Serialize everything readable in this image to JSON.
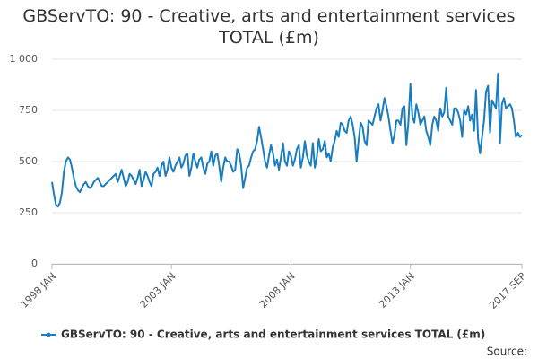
{
  "chart_data": {
    "type": "line",
    "title": "GBServTO: 90 - Creative, arts and entertainment services TOTAL (£m)",
    "source": "Source:",
    "categories": [
      "1998 JAN",
      null,
      null,
      null,
      null,
      null,
      null,
      null,
      null,
      null,
      null,
      null,
      null,
      null,
      null,
      null,
      null,
      null,
      null,
      null,
      null,
      null,
      null,
      null,
      null,
      null,
      null,
      null,
      null,
      null,
      null,
      null,
      null,
      null,
      null,
      null,
      null,
      null,
      null,
      null,
      null,
      null,
      null,
      null,
      null,
      null,
      null,
      null,
      null,
      null,
      null,
      null,
      null,
      null,
      null,
      null,
      null,
      null,
      null,
      null,
      "2003 JAN",
      null,
      null,
      null,
      null,
      null,
      null,
      null,
      null,
      null,
      null,
      null,
      null,
      null,
      null,
      null,
      null,
      null,
      null,
      null,
      null,
      null,
      null,
      null,
      null,
      null,
      null,
      null,
      null,
      null,
      null,
      null,
      null,
      null,
      null,
      null,
      null,
      null,
      null,
      null,
      null,
      null,
      null,
      null,
      null,
      null,
      null,
      null,
      null,
      null,
      null,
      null,
      null,
      null,
      null,
      null,
      null,
      null,
      null,
      null,
      "2008 JAN",
      null,
      null,
      null,
      null,
      null,
      null,
      null,
      null,
      null,
      null,
      null,
      null,
      null,
      null,
      null,
      null,
      null,
      null,
      null,
      null,
      null,
      null,
      null,
      null,
      null,
      null,
      null,
      null,
      null,
      null,
      null,
      null,
      null,
      null,
      null,
      null,
      null,
      null,
      null,
      null,
      null,
      null,
      null,
      null,
      null,
      null,
      null,
      null,
      null,
      null,
      null,
      null,
      null,
      null,
      null,
      null,
      null,
      null,
      null,
      "2013 JAN",
      null,
      null,
      null,
      null,
      null,
      null,
      null,
      null,
      null,
      null,
      null,
      null,
      null,
      null,
      null,
      null,
      null,
      null,
      null,
      null,
      null,
      null,
      null,
      null,
      null,
      null,
      null,
      null,
      null,
      null,
      null,
      null,
      null,
      null,
      null,
      null,
      null,
      null,
      null,
      null,
      null,
      null,
      null,
      null,
      null,
      null,
      null,
      null,
      null,
      null,
      null,
      null,
      null,
      null,
      null,
      "2017 SEP"
    ],
    "series": [
      {
        "name": "GBServTO: 90 - Creative, arts and entertainment services TOTAL (£m)",
        "color": "#1a7dbd",
        "values": [
          400,
          340,
          290,
          280,
          300,
          350,
          450,
          500,
          520,
          510,
          470,
          420,
          380,
          360,
          350,
          370,
          390,
          400,
          380,
          370,
          380,
          400,
          410,
          420,
          400,
          380,
          380,
          390,
          400,
          410,
          420,
          430,
          440,
          400,
          430,
          460,
          420,
          380,
          400,
          440,
          430,
          410,
          390,
          420,
          460,
          380,
          410,
          450,
          430,
          400,
          380,
          440,
          450,
          470,
          430,
          480,
          500,
          430,
          460,
          520,
          470,
          450,
          480,
          500,
          520,
          470,
          490,
          530,
          540,
          430,
          470,
          540,
          500,
          470,
          510,
          520,
          470,
          440,
          490,
          500,
          550,
          480,
          530,
          540,
          480,
          400,
          470,
          520,
          500,
          500,
          480,
          450,
          460,
          560,
          540,
          480,
          370,
          420,
          470,
          480,
          520,
          550,
          560,
          600,
          670,
          620,
          560,
          500,
          470,
          530,
          580,
          540,
          480,
          510,
          460,
          520,
          590,
          500,
          480,
          550,
          530,
          480,
          510,
          560,
          580,
          470,
          520,
          600,
          530,
          500,
          480,
          590,
          470,
          520,
          610,
          550,
          560,
          600,
          520,
          540,
          500,
          570,
          600,
          650,
          620,
          690,
          680,
          650,
          640,
          700,
          720,
          680,
          620,
          500,
          600,
          690,
          670,
          600,
          580,
          700,
          690,
          680,
          720,
          760,
          780,
          700,
          750,
          810,
          770,
          720,
          650,
          590,
          630,
          700,
          700,
          680,
          760,
          770,
          580,
          690,
          880,
          720,
          690,
          780,
          740,
          680,
          700,
          720,
          650,
          620,
          580,
          680,
          720,
          700,
          650,
          760,
          720,
          740,
          860,
          720,
          700,
          680,
          760,
          760,
          740,
          700,
          620,
          750,
          730,
          770,
          700,
          730,
          650,
          850,
          610,
          540,
          620,
          700,
          840,
          870,
          640,
          800,
          780,
          760,
          930,
          590,
          780,
          810,
          760,
          770,
          780,
          760,
          700,
          620,
          640,
          620,
          630
        ]
      }
    ],
    "ylim": [
      0,
      1000
    ],
    "yticks": [
      0,
      250,
      500,
      750,
      {
        "value": 1000,
        "label": "1 000"
      }
    ],
    "grid": true
  }
}
